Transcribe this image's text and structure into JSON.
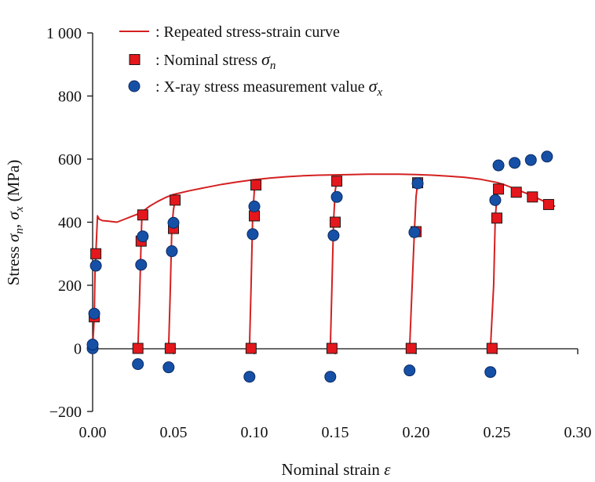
{
  "chart_data": {
    "type": "scatter",
    "title": "",
    "xlabel": "Nominal strain",
    "xlabel_symbol": "ε",
    "ylabel_prefix": "Stress",
    "ylabel_sym1": "σ",
    "ylabel_sub1": "n",
    "ylabel_sep": ",",
    "ylabel_sym2": "σ",
    "ylabel_sub2": "x",
    "ylabel_unit": "(MPa)",
    "xlim": [
      0,
      0.3
    ],
    "ylim": [
      -200,
      1000
    ],
    "x_ticks": [
      0.0,
      0.05,
      0.1,
      0.15,
      0.2,
      0.25,
      0.3
    ],
    "x_tick_labels": [
      "0.00",
      "0.05",
      "0.10",
      "0.15",
      "0.20",
      "0.25",
      "0.30"
    ],
    "y_ticks": [
      -200,
      0,
      200,
      400,
      600,
      800,
      1000
    ],
    "y_tick_labels": [
      "−200",
      "0",
      "200",
      "400",
      "600",
      "800",
      "1 000"
    ],
    "grid": false,
    "legend_position": "top-left",
    "legend": [
      {
        "marker": "line",
        "text": ": Repeated stress-strain curve",
        "symbol": "",
        "sub": ""
      },
      {
        "marker": "square",
        "text": ": Nominal stress ",
        "symbol": "σ",
        "sub": "n"
      },
      {
        "marker": "circle",
        "text": ": X-ray stress measurement value ",
        "symbol": "σ",
        "sub": "x"
      }
    ],
    "colors": {
      "curve": "#d42020",
      "square_fill": "#e4171c",
      "square_edge": "#1a1a1a",
      "circle_fill": "#1650a6",
      "circle_edge": "#0b2a63"
    },
    "series": [
      {
        "name": "Repeated stress-strain curve",
        "kind": "line",
        "segments": [
          [
            [
              0.0,
              0
            ],
            [
              0.001,
              100
            ],
            [
              0.0015,
              250
            ],
            [
              0.002,
              300
            ],
            [
              0.003,
              420
            ],
            [
              0.004,
              410
            ],
            [
              0.006,
              405
            ],
            [
              0.01,
              403
            ],
            [
              0.015,
              400
            ],
            [
              0.02,
              410
            ],
            [
              0.025,
              420
            ],
            [
              0.03,
              430
            ],
            [
              0.035,
              450
            ],
            [
              0.04,
              465
            ],
            [
              0.045,
              478
            ],
            [
              0.05,
              488
            ],
            [
              0.06,
              500
            ],
            [
              0.07,
              510
            ],
            [
              0.08,
              520
            ],
            [
              0.09,
              528
            ],
            [
              0.1,
              535
            ],
            [
              0.11,
              540
            ],
            [
              0.12,
              544
            ],
            [
              0.13,
              547
            ],
            [
              0.14,
              549
            ],
            [
              0.15,
              550
            ],
            [
              0.16,
              551
            ],
            [
              0.17,
              552
            ],
            [
              0.18,
              552
            ],
            [
              0.19,
              552
            ],
            [
              0.2,
              551
            ],
            [
              0.21,
              549
            ],
            [
              0.22,
              546
            ],
            [
              0.23,
              542
            ],
            [
              0.24,
              536
            ],
            [
              0.25,
              526
            ],
            [
              0.255,
              518
            ],
            [
              0.26,
              508
            ],
            [
              0.265,
              498
            ],
            [
              0.27,
              488
            ],
            [
              0.275,
              476
            ],
            [
              0.28,
              464
            ],
            [
              0.283,
              458
            ],
            [
              0.286,
              450
            ]
          ],
          [
            [
              0.028,
              0
            ],
            [
              0.029,
              150
            ],
            [
              0.03,
              340
            ],
            [
              0.0305,
              425
            ]
          ],
          [
            [
              0.047,
              0
            ],
            [
              0.048,
              180
            ],
            [
              0.049,
              380
            ],
            [
              0.05,
              440
            ],
            [
              0.051,
              470
            ]
          ],
          [
            [
              0.097,
              0
            ],
            [
              0.098,
              200
            ],
            [
              0.099,
              420
            ],
            [
              0.1,
              500
            ],
            [
              0.101,
              520
            ]
          ],
          [
            [
              0.147,
              0
            ],
            [
              0.148,
              200
            ],
            [
              0.149,
              400
            ],
            [
              0.15,
              500
            ],
            [
              0.151,
              530
            ]
          ],
          [
            [
              0.196,
              0
            ],
            [
              0.198,
              250
            ],
            [
              0.199,
              370
            ],
            [
              0.2,
              480
            ],
            [
              0.201,
              525
            ]
          ],
          [
            [
              0.246,
              0
            ],
            [
              0.248,
              200
            ],
            [
              0.249,
              410
            ],
            [
              0.25,
              480
            ],
            [
              0.251,
              505
            ]
          ]
        ]
      },
      {
        "name": "Nominal stress",
        "kind": "square",
        "points": [
          [
            0.001,
            100
          ],
          [
            0.002,
            300
          ],
          [
            0.028,
            0
          ],
          [
            0.03,
            340
          ],
          [
            0.031,
            423
          ],
          [
            0.048,
            0
          ],
          [
            0.05,
            380
          ],
          [
            0.051,
            470
          ],
          [
            0.098,
            0
          ],
          [
            0.1,
            420
          ],
          [
            0.101,
            518
          ],
          [
            0.148,
            0
          ],
          [
            0.15,
            400
          ],
          [
            0.151,
            530
          ],
          [
            0.197,
            0
          ],
          [
            0.2,
            370
          ],
          [
            0.201,
            525
          ],
          [
            0.247,
            0
          ],
          [
            0.25,
            413
          ],
          [
            0.251,
            505
          ],
          [
            0.262,
            495
          ],
          [
            0.272,
            480
          ],
          [
            0.282,
            456
          ]
        ]
      },
      {
        "name": "X-ray stress measurement value",
        "kind": "circle",
        "points": [
          [
            0.0,
            0
          ],
          [
            0.0,
            12
          ],
          [
            0.001,
            110
          ],
          [
            0.002,
            262
          ],
          [
            0.028,
            -50
          ],
          [
            0.03,
            265
          ],
          [
            0.031,
            355
          ],
          [
            0.047,
            -60
          ],
          [
            0.049,
            308
          ],
          [
            0.05,
            398
          ],
          [
            0.097,
            -90
          ],
          [
            0.099,
            362
          ],
          [
            0.1,
            450
          ],
          [
            0.147,
            -90
          ],
          [
            0.149,
            358
          ],
          [
            0.151,
            480
          ],
          [
            0.196,
            -70
          ],
          [
            0.199,
            368
          ],
          [
            0.201,
            523
          ],
          [
            0.246,
            -75
          ],
          [
            0.249,
            470
          ],
          [
            0.251,
            580
          ],
          [
            0.261,
            588
          ],
          [
            0.271,
            597
          ],
          [
            0.281,
            608
          ]
        ]
      }
    ]
  }
}
